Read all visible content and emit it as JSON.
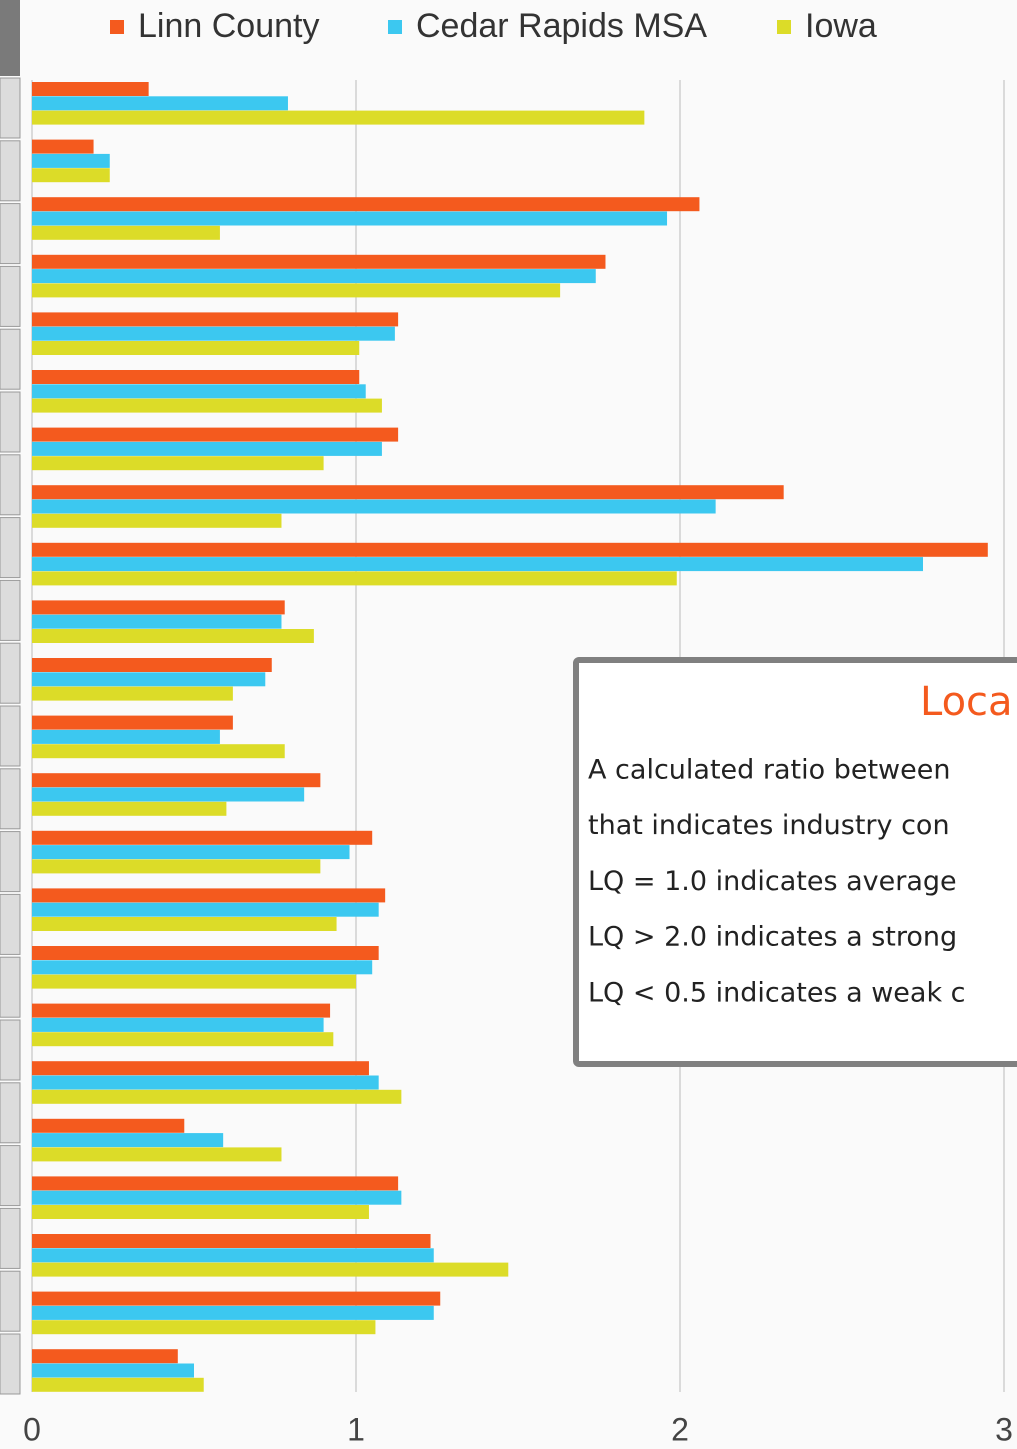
{
  "chart_data": {
    "type": "barh",
    "categories": [
      null,
      null,
      null,
      null,
      null,
      null,
      null,
      null,
      null,
      null,
      null,
      null,
      null,
      null,
      null,
      null,
      null,
      null,
      null,
      null,
      null,
      null,
      null
    ],
    "series": [
      {
        "name": "Linn County",
        "color": "#f45a1e",
        "values": [
          0.36,
          0.19,
          2.06,
          1.77,
          1.13,
          1.01,
          1.13,
          2.32,
          2.95,
          0.78,
          0.74,
          0.62,
          0.89,
          1.05,
          1.09,
          1.07,
          0.92,
          1.04,
          0.47,
          1.13,
          1.23,
          1.26,
          0.45
        ]
      },
      {
        "name": "Cedar Rapids MSA",
        "color": "#3cc8f0",
        "values": [
          0.79,
          0.24,
          1.96,
          1.74,
          1.12,
          1.03,
          1.08,
          2.11,
          2.75,
          0.77,
          0.72,
          0.58,
          0.84,
          0.98,
          1.07,
          1.05,
          0.9,
          1.07,
          0.59,
          1.14,
          1.24,
          1.24,
          0.5
        ]
      },
      {
        "name": "Iowa",
        "color": "#dcdc28",
        "values": [
          1.89,
          0.24,
          0.58,
          1.63,
          1.01,
          1.08,
          0.9,
          0.77,
          1.99,
          0.87,
          0.62,
          0.78,
          0.6,
          0.89,
          0.94,
          1.0,
          0.93,
          1.14,
          0.77,
          1.04,
          1.47,
          1.06,
          0.53
        ]
      }
    ],
    "xlim": [
      0,
      3
    ],
    "xticks": [
      0,
      1,
      2,
      3
    ],
    "grid": true,
    "legend": "top"
  },
  "annotation": {
    "title": "Loca",
    "lines": [
      "A calculated ratio between",
      "that indicates industry con",
      "LQ = 1.0 indicates average",
      "LQ > 2.0 indicates a strong",
      "LQ < 0.5 indicates a weak c"
    ]
  }
}
